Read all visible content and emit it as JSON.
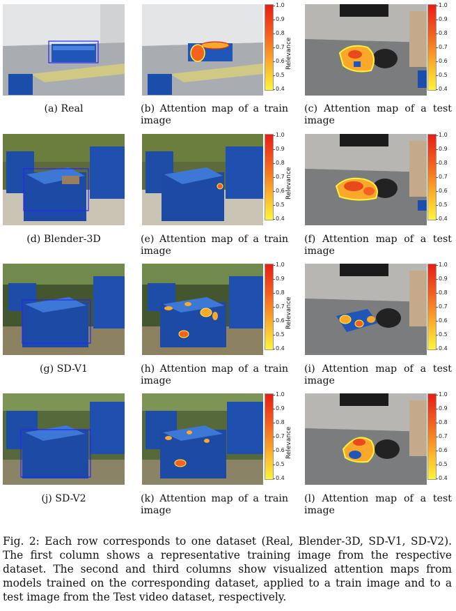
{
  "figure": {
    "rows": [
      {
        "dataset": "Real",
        "captions": [
          "(a) Real",
          "(b) Attention map of a train image",
          "(c) Attention map of a test image"
        ],
        "scene": "warehouse-real"
      },
      {
        "dataset": "Blender-3D",
        "captions": [
          "(d) Blender-3D",
          "(e) Attention map of a train image",
          "(f) Attention map of a test image"
        ],
        "scene": "outdoor-blender"
      },
      {
        "dataset": "SD-V1",
        "captions": [
          "(g) SD-V1",
          "(h) Attention map of a train image",
          "(i) Attention map of a test image"
        ],
        "scene": "outdoor-sd1"
      },
      {
        "dataset": "SD-V2",
        "captions": [
          "(j) SD-V2",
          "(k) Attention map of a train image",
          "(l) Attention map of a test image"
        ],
        "scene": "outdoor-sd2"
      }
    ],
    "colorbar": {
      "label": "Relevance",
      "ticks": [
        "1.0",
        "0.9",
        "0.8",
        "0.7",
        "0.6",
        "0.5",
        "0.4"
      ],
      "colors": [
        "#e81e14",
        "#f4621f",
        "#f9a82b",
        "#fdf43a"
      ]
    },
    "caption_prefix": "Fig. 2:",
    "caption_text": "Each row corresponds to one dataset (Real, Blender-3D, SD-V1, SD-V2). The first column shows a representative training image from the respective dataset. The second and third columns show visualized attention maps from models trained on the corresponding dataset, applied to a train image and to a test image from the Test video dataset, respectively."
  }
}
